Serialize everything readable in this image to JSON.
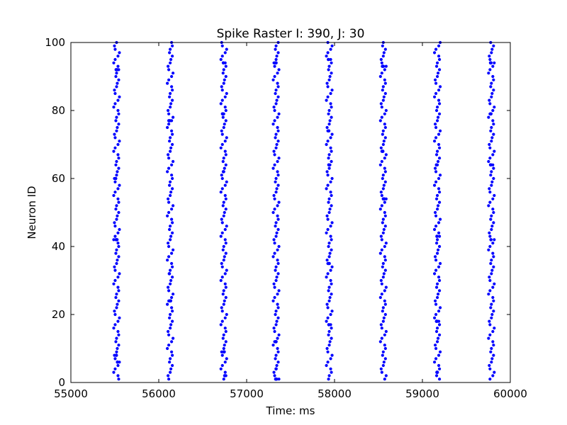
{
  "chart_data": {
    "type": "scatter",
    "title": "Spike Raster I: 390, J: 30",
    "xlabel": "Time: ms",
    "ylabel": "Neuron ID",
    "xlim": [
      55000,
      60000
    ],
    "ylim": [
      0,
      100
    ],
    "x_ticks": [
      55000,
      56000,
      57000,
      58000,
      59000,
      60000
    ],
    "y_ticks": [
      0,
      20,
      40,
      60,
      80,
      100
    ],
    "grid": false,
    "legend": false,
    "marker_color": "#0000ff",
    "neuron_ids": {
      "min": 1,
      "max": 100
    },
    "series": [
      {
        "burst_times": [
          55520,
          56130,
          56740,
          57335,
          57940,
          58555,
          59170,
          59785
        ],
        "spikes": [
          [
            55510,
            60
          ],
          [
            55515,
            92
          ],
          [
            55525,
            92
          ],
          [
            55515,
            42
          ],
          [
            55525,
            42
          ],
          [
            55530,
            6
          ],
          [
            55518,
            8
          ],
          [
            56115,
            77
          ],
          [
            56125,
            77
          ],
          [
            56120,
            32
          ],
          [
            56125,
            24
          ],
          [
            56135,
            24
          ],
          [
            56725,
            79
          ],
          [
            56730,
            79
          ],
          [
            56735,
            62
          ],
          [
            56740,
            9
          ],
          [
            56745,
            9
          ],
          [
            56750,
            2
          ],
          [
            56735,
            94
          ],
          [
            57325,
            94
          ],
          [
            57335,
            94
          ],
          [
            57330,
            12
          ],
          [
            57335,
            12
          ],
          [
            57330,
            1
          ],
          [
            57340,
            1
          ],
          [
            57335,
            4
          ],
          [
            57930,
            35
          ],
          [
            57940,
            35
          ],
          [
            57935,
            17
          ],
          [
            57930,
            95
          ],
          [
            57935,
            74
          ],
          [
            57935,
            64
          ],
          [
            58545,
            93
          ],
          [
            58555,
            93
          ],
          [
            58545,
            68
          ],
          [
            58550,
            68
          ],
          [
            58555,
            54
          ],
          [
            58565,
            54
          ],
          [
            59160,
            18
          ],
          [
            59165,
            18
          ],
          [
            59165,
            43
          ],
          [
            59160,
            64
          ],
          [
            59165,
            3
          ],
          [
            59170,
            3
          ],
          [
            59775,
            94
          ],
          [
            59780,
            94
          ],
          [
            59775,
            79
          ],
          [
            59780,
            79
          ],
          [
            59775,
            64
          ],
          [
            59780,
            64
          ],
          [
            59780,
            42
          ]
        ]
      }
    ]
  }
}
